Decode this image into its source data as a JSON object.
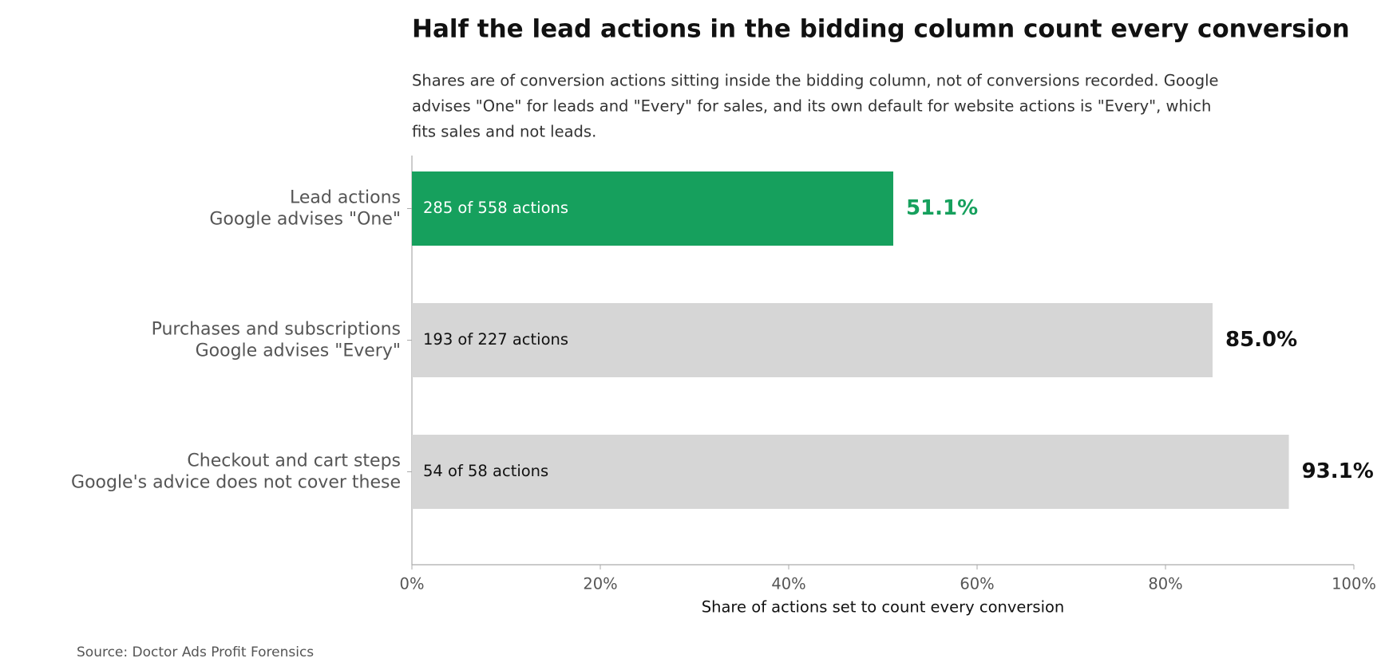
{
  "chart_data": {
    "type": "barh",
    "title": "Half the lead actions in the bidding column count every conversion",
    "subtitle": [
      "Shares are of conversion actions sitting inside the bidding column, not of conversions recorded. Google",
      "advises \"One\" for leads and \"Every\" for sales, and its own default for website actions is \"Every\", which",
      "fits sales and not leads."
    ],
    "categories": [
      [
        "Lead actions",
        "Google advises \"One\""
      ],
      [
        "Purchases and subscriptions",
        "Google advises \"Every\""
      ],
      [
        "Checkout and cart steps",
        "Google's advice does not cover these"
      ]
    ],
    "values": [
      51.1,
      85.0,
      93.1
    ],
    "value_labels": [
      "51.1%",
      "85.0%",
      "93.1%"
    ],
    "bar_labels": [
      "285 of 558 actions",
      "193 of 227 actions",
      "54 of 58 actions"
    ],
    "colors": [
      "#16a05d",
      "#d6d6d6",
      "#d6d6d6"
    ],
    "value_label_colors": [
      "#16a05d",
      "#111111",
      "#111111"
    ],
    "bar_label_colors": [
      "#ffffff",
      "#111111",
      "#111111"
    ],
    "xlim": [
      0,
      100
    ],
    "xticks": [
      {
        "value": 0,
        "label": "0%"
      },
      {
        "value": 20,
        "label": "20%"
      },
      {
        "value": 40,
        "label": "40%"
      },
      {
        "value": 60,
        "label": "60%"
      },
      {
        "value": 80,
        "label": "80%"
      },
      {
        "value": 100,
        "label": "100%"
      }
    ],
    "xlabel": "Share of actions set to count every conversion",
    "source": "Source: Doctor Ads Profit Forensics"
  }
}
